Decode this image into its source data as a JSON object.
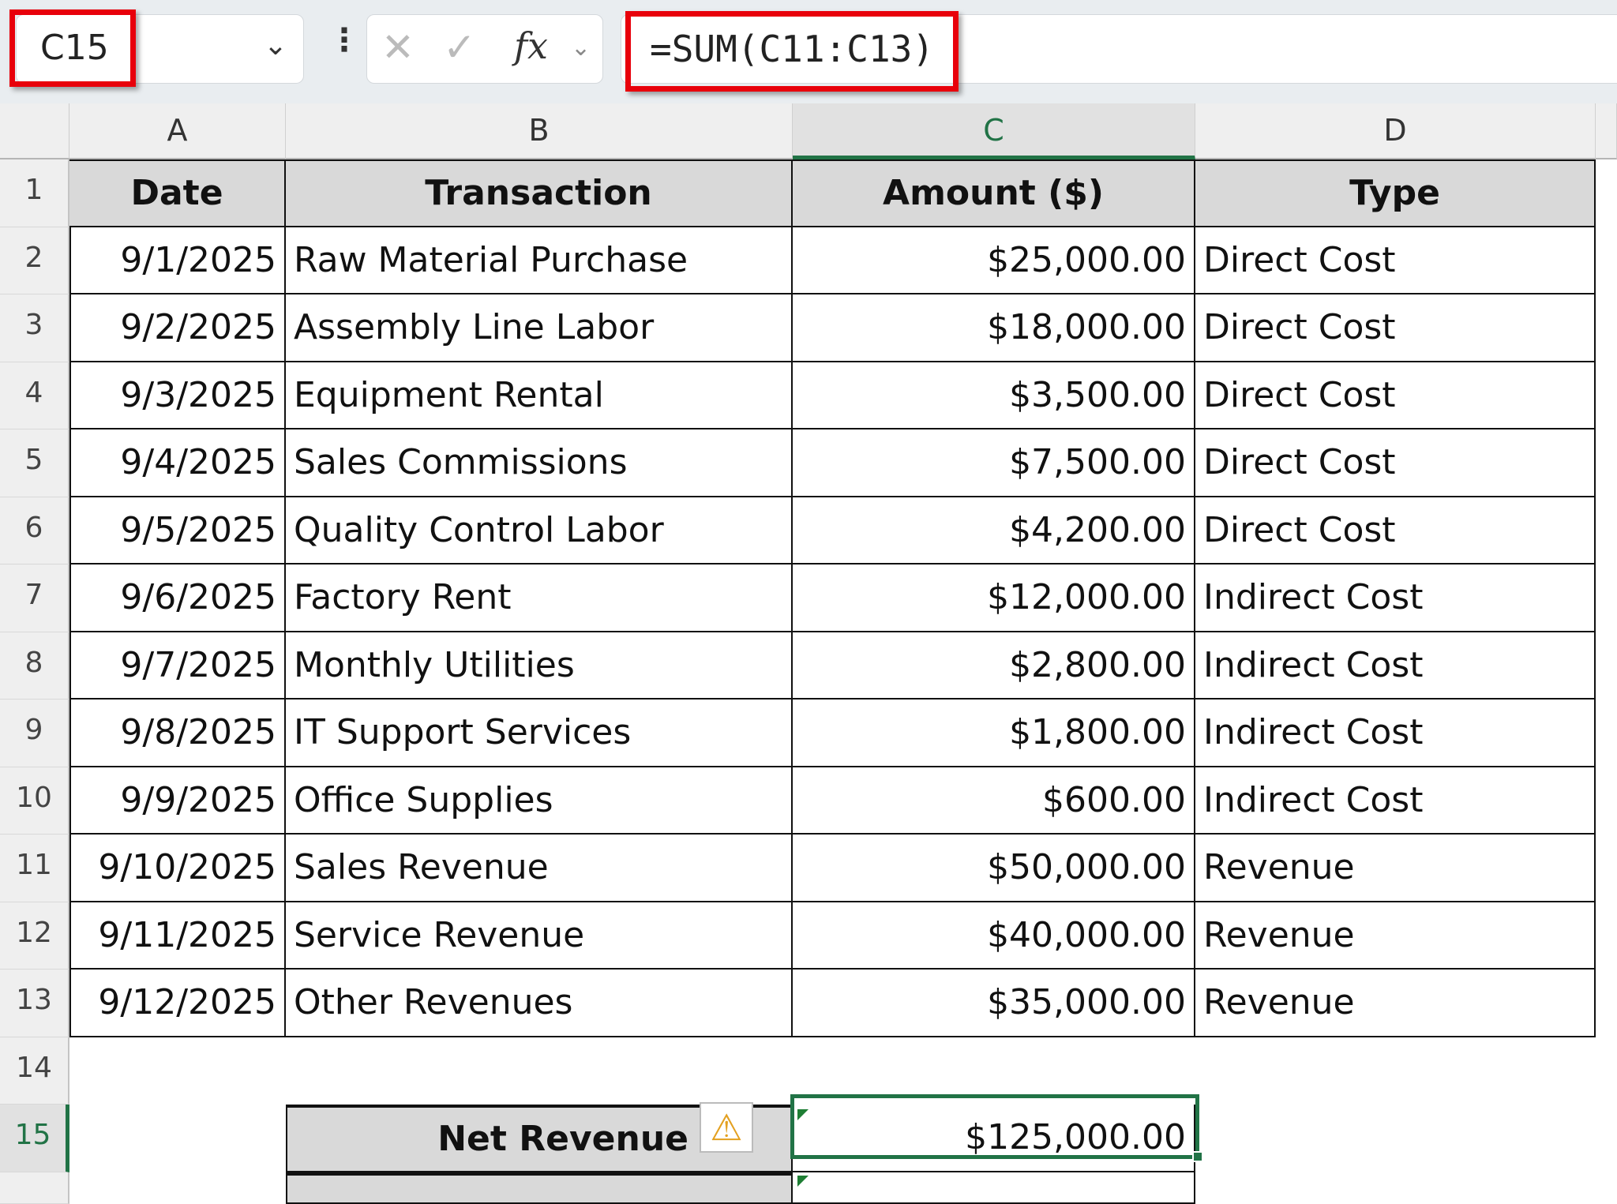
{
  "name_box": {
    "value": "C15"
  },
  "formula_bar": {
    "formula": "=SUM(C11:C13)",
    "cancel_icon": "✕",
    "enter_icon": "✓",
    "fx_label": "fx"
  },
  "columns": [
    "A",
    "B",
    "C",
    "D"
  ],
  "selected_column": "C",
  "row_numbers": [
    "1",
    "2",
    "3",
    "4",
    "5",
    "6",
    "7",
    "8",
    "9",
    "10",
    "11",
    "12",
    "13",
    "14",
    "15"
  ],
  "selected_row": "15",
  "table": {
    "headers": [
      "Date",
      "Transaction",
      "Amount ($)",
      "Type"
    ],
    "rows": [
      [
        "9/1/2025",
        "Raw Material Purchase",
        "$25,000.00",
        "Direct Cost"
      ],
      [
        "9/2/2025",
        "Assembly Line Labor",
        "$18,000.00",
        "Direct Cost"
      ],
      [
        "9/3/2025",
        "Equipment Rental",
        "$3,500.00",
        "Direct Cost"
      ],
      [
        "9/4/2025",
        "Sales Commissions",
        "$7,500.00",
        "Direct Cost"
      ],
      [
        "9/5/2025",
        "Quality Control Labor",
        "$4,200.00",
        "Direct Cost"
      ],
      [
        "9/6/2025",
        "Factory Rent",
        "$12,000.00",
        "Indirect Cost"
      ],
      [
        "9/7/2025",
        "Monthly Utilities",
        "$2,800.00",
        "Indirect Cost"
      ],
      [
        "9/8/2025",
        "IT Support Services",
        "$1,800.00",
        "Indirect Cost"
      ],
      [
        "9/9/2025",
        "Office Supplies",
        "$600.00",
        "Indirect Cost"
      ],
      [
        "9/10/2025",
        "Sales Revenue",
        "$50,000.00",
        "Revenue"
      ],
      [
        "9/11/2025",
        "Service Revenue",
        "$40,000.00",
        "Revenue"
      ],
      [
        "9/12/2025",
        "Other Revenues",
        "$35,000.00",
        "Revenue"
      ]
    ]
  },
  "summary": {
    "label": "Net Revenue",
    "value": "$125,000.00",
    "warning_icon": "⚠"
  },
  "colors": {
    "selection": "#217346",
    "highlight": "#e8000b",
    "header_fill": "#d9d9d9"
  }
}
